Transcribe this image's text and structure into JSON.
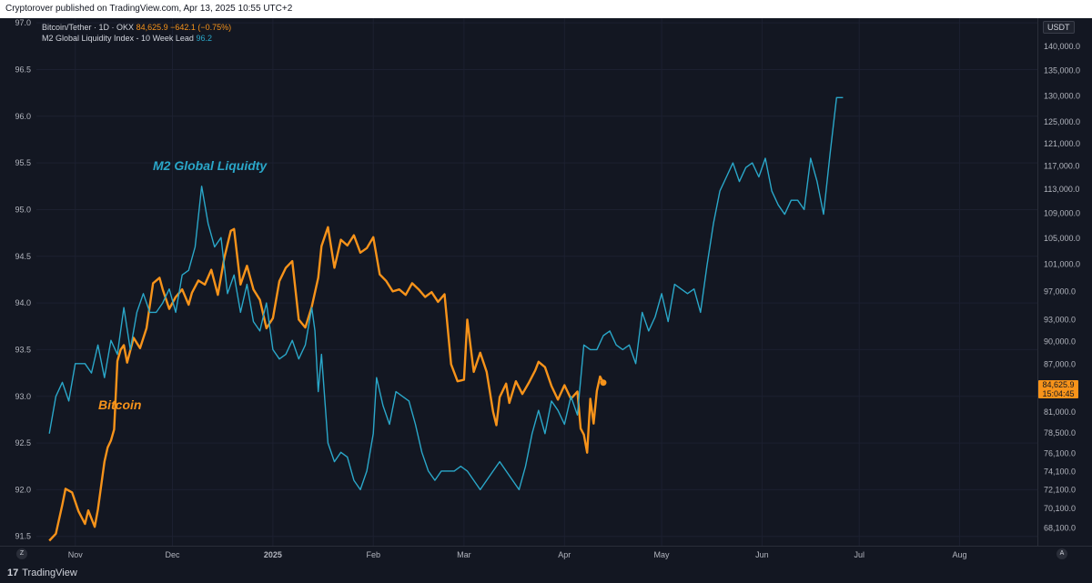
{
  "header": {
    "published_text": "Cryptorover published on TradingView.com, Apr 13, 2025 10:55 UTC+2"
  },
  "legend": {
    "btc_label": "Bitcoin/Tether · 1D · OKX",
    "btc_price": "84,625.9",
    "btc_change": "−642.1 (−0.75%)",
    "m2_label": "M2 Global Liquidity Index - 10 Week Lead",
    "m2_value": "96.2"
  },
  "right_axis_unit": "USDT",
  "price_tag": {
    "price": "84,625.9",
    "countdown": "15:04:45"
  },
  "annotations": {
    "m2": "M2 Global Liquidty",
    "btc": "Bitcoin"
  },
  "footer": {
    "logo": "TradingView",
    "logo_mark": "17"
  },
  "buttons": {
    "zoom_left": "Z",
    "auto_right": "A"
  },
  "colors": {
    "background": "#131722",
    "bitcoin": "#f7931a",
    "m2": "#2aa7c9",
    "text": "#d1d4dc"
  },
  "chart_data": {
    "type": "line",
    "x_ticks": [
      "Nov",
      "Dec",
      "2025",
      "Feb",
      "Mar",
      "Apr",
      "May",
      "Jun",
      "Jul",
      "Aug"
    ],
    "left_axis": {
      "ticks": [
        "97.0",
        "96.5",
        "96.0",
        "95.5",
        "95.0",
        "94.5",
        "94.0",
        "93.5",
        "93.0",
        "92.5",
        "92.0",
        "91.5"
      ],
      "range": [
        91.4,
        97.05
      ]
    },
    "right_axis": {
      "ticks": [
        "140,000.0",
        "135,000.0",
        "130,000.0",
        "125,000.0",
        "121,000.0",
        "117,000.0",
        "113,000.0",
        "109,000.0",
        "105,000.0",
        "101,000.0",
        "97,000.0",
        "93,000.0",
        "90,000.0",
        "87,000.0",
        "81,000.0",
        "78,500.0",
        "76,100.0",
        "74,100.0",
        "72,100.0",
        "70,100.0",
        "68,100.0"
      ],
      "scale": "log"
    },
    "series": [
      {
        "name": "Bitcoin/Tether",
        "axis": "right",
        "points": [
          [
            "2024-10-24",
            66800
          ],
          [
            "2024-10-26",
            67500
          ],
          [
            "2024-10-28",
            70500
          ],
          [
            "2024-10-29",
            72200
          ],
          [
            "2024-10-31",
            71800
          ],
          [
            "2024-11-02",
            69800
          ],
          [
            "2024-11-04",
            68500
          ],
          [
            "2024-11-05",
            69900
          ],
          [
            "2024-11-07",
            68200
          ],
          [
            "2024-11-08",
            70000
          ],
          [
            "2024-11-10",
            75200
          ],
          [
            "2024-11-11",
            76800
          ],
          [
            "2024-11-12",
            77600
          ],
          [
            "2024-11-13",
            78900
          ],
          [
            "2024-11-14",
            87400
          ],
          [
            "2024-11-15",
            88900
          ],
          [
            "2024-11-16",
            89500
          ],
          [
            "2024-11-17",
            87200
          ],
          [
            "2024-11-19",
            90500
          ],
          [
            "2024-11-21",
            89100
          ],
          [
            "2024-11-23",
            91800
          ],
          [
            "2024-11-25",
            98200
          ],
          [
            "2024-11-27",
            99000
          ],
          [
            "2024-11-28",
            97300
          ],
          [
            "2024-11-30",
            94500
          ],
          [
            "2024-12-02",
            96200
          ],
          [
            "2024-12-04",
            97300
          ],
          [
            "2024-12-06",
            95100
          ],
          [
            "2024-12-07",
            96800
          ],
          [
            "2024-12-09",
            98600
          ],
          [
            "2024-12-11",
            98000
          ],
          [
            "2024-12-13",
            100200
          ],
          [
            "2024-12-15",
            96500
          ],
          [
            "2024-12-17",
            102000
          ],
          [
            "2024-12-19",
            106200
          ],
          [
            "2024-12-20",
            106500
          ],
          [
            "2024-12-22",
            98000
          ],
          [
            "2024-12-24",
            100800
          ],
          [
            "2024-12-26",
            97300
          ],
          [
            "2024-12-28",
            95800
          ],
          [
            "2024-12-30",
            91800
          ],
          [
            "2025-01-01",
            93200
          ],
          [
            "2025-01-03",
            98500
          ],
          [
            "2025-01-05",
            100500
          ],
          [
            "2025-01-07",
            101500
          ],
          [
            "2025-01-09",
            93000
          ],
          [
            "2025-01-11",
            91900
          ],
          [
            "2025-01-13",
            94800
          ],
          [
            "2025-01-15",
            99000
          ],
          [
            "2025-01-16",
            103800
          ],
          [
            "2025-01-18",
            106800
          ],
          [
            "2025-01-20",
            100500
          ],
          [
            "2025-01-22",
            104800
          ],
          [
            "2025-01-24",
            103900
          ],
          [
            "2025-01-26",
            105500
          ],
          [
            "2025-01-28",
            102800
          ],
          [
            "2025-01-30",
            103500
          ],
          [
            "2025-02-01",
            105200
          ],
          [
            "2025-02-03",
            99500
          ],
          [
            "2025-02-05",
            98500
          ],
          [
            "2025-02-07",
            97000
          ],
          [
            "2025-02-09",
            97300
          ],
          [
            "2025-02-11",
            96500
          ],
          [
            "2025-02-13",
            98200
          ],
          [
            "2025-02-15",
            97300
          ],
          [
            "2025-02-17",
            96200
          ],
          [
            "2025-02-19",
            96900
          ],
          [
            "2025-02-21",
            95500
          ],
          [
            "2025-02-23",
            96600
          ],
          [
            "2025-02-25",
            87000
          ],
          [
            "2025-02-27",
            84800
          ],
          [
            "2025-03-01",
            85000
          ],
          [
            "2025-03-02",
            93000
          ],
          [
            "2025-03-04",
            86000
          ],
          [
            "2025-03-06",
            88500
          ],
          [
            "2025-03-08",
            86000
          ],
          [
            "2025-03-10",
            81000
          ],
          [
            "2025-03-11",
            79400
          ],
          [
            "2025-03-12",
            82800
          ],
          [
            "2025-03-14",
            84500
          ],
          [
            "2025-03-15",
            82100
          ],
          [
            "2025-03-17",
            84800
          ],
          [
            "2025-03-19",
            83200
          ],
          [
            "2025-03-21",
            84600
          ],
          [
            "2025-03-23",
            86200
          ],
          [
            "2025-03-24",
            87300
          ],
          [
            "2025-03-26",
            86600
          ],
          [
            "2025-03-28",
            84200
          ],
          [
            "2025-03-30",
            82500
          ],
          [
            "2025-04-01",
            84300
          ],
          [
            "2025-04-03",
            82600
          ],
          [
            "2025-04-05",
            83500
          ],
          [
            "2025-04-06",
            79000
          ],
          [
            "2025-04-07",
            78300
          ],
          [
            "2025-04-08",
            76200
          ],
          [
            "2025-04-09",
            82600
          ],
          [
            "2025-04-10",
            79600
          ],
          [
            "2025-04-11",
            83600
          ],
          [
            "2025-04-12",
            85400
          ],
          [
            "2025-04-13",
            84625.9
          ]
        ]
      },
      {
        "name": "M2 Global Liquidity Index - 10 Week Lead",
        "axis": "left",
        "points": [
          [
            "2024-10-24",
            92.6
          ],
          [
            "2024-10-26",
            93.0
          ],
          [
            "2024-10-28",
            93.15
          ],
          [
            "2024-10-30",
            92.95
          ],
          [
            "2024-11-01",
            93.35
          ],
          [
            "2024-11-04",
            93.35
          ],
          [
            "2024-11-06",
            93.25
          ],
          [
            "2024-11-08",
            93.55
          ],
          [
            "2024-11-10",
            93.2
          ],
          [
            "2024-11-12",
            93.6
          ],
          [
            "2024-11-14",
            93.45
          ],
          [
            "2024-11-16",
            93.95
          ],
          [
            "2024-11-18",
            93.5
          ],
          [
            "2024-11-20",
            93.9
          ],
          [
            "2024-11-22",
            94.1
          ],
          [
            "2024-11-24",
            93.9
          ],
          [
            "2024-11-26",
            93.9
          ],
          [
            "2024-11-28",
            94.0
          ],
          [
            "2024-11-30",
            94.15
          ],
          [
            "2024-12-02",
            93.9
          ],
          [
            "2024-12-04",
            94.3
          ],
          [
            "2024-12-06",
            94.35
          ],
          [
            "2024-12-08",
            94.6
          ],
          [
            "2024-12-10",
            95.25
          ],
          [
            "2024-12-12",
            94.85
          ],
          [
            "2024-12-14",
            94.6
          ],
          [
            "2024-12-16",
            94.7
          ],
          [
            "2024-12-18",
            94.1
          ],
          [
            "2024-12-20",
            94.3
          ],
          [
            "2024-12-22",
            93.9
          ],
          [
            "2024-12-24",
            94.2
          ],
          [
            "2024-12-26",
            93.8
          ],
          [
            "2024-12-28",
            93.7
          ],
          [
            "2024-12-30",
            94.0
          ],
          [
            "2025-01-01",
            93.5
          ],
          [
            "2025-01-03",
            93.4
          ],
          [
            "2025-01-05",
            93.45
          ],
          [
            "2025-01-07",
            93.6
          ],
          [
            "2025-01-09",
            93.4
          ],
          [
            "2025-01-11",
            93.55
          ],
          [
            "2025-01-13",
            93.95
          ],
          [
            "2025-01-14",
            93.7
          ],
          [
            "2025-01-15",
            93.05
          ],
          [
            "2025-01-16",
            93.45
          ],
          [
            "2025-01-18",
            92.5
          ],
          [
            "2025-01-20",
            92.3
          ],
          [
            "2025-01-22",
            92.4
          ],
          [
            "2025-01-24",
            92.35
          ],
          [
            "2025-01-26",
            92.1
          ],
          [
            "2025-01-28",
            92.0
          ],
          [
            "2025-01-30",
            92.2
          ],
          [
            "2025-02-01",
            92.6
          ],
          [
            "2025-02-02",
            93.2
          ],
          [
            "2025-02-04",
            92.9
          ],
          [
            "2025-02-06",
            92.7
          ],
          [
            "2025-02-08",
            93.05
          ],
          [
            "2025-02-10",
            93.0
          ],
          [
            "2025-02-12",
            92.95
          ],
          [
            "2025-02-14",
            92.7
          ],
          [
            "2025-02-16",
            92.4
          ],
          [
            "2025-02-18",
            92.2
          ],
          [
            "2025-02-20",
            92.1
          ],
          [
            "2025-02-22",
            92.2
          ],
          [
            "2025-02-24",
            92.2
          ],
          [
            "2025-02-26",
            92.2
          ],
          [
            "2025-02-28",
            92.25
          ],
          [
            "2025-03-02",
            92.2
          ],
          [
            "2025-03-04",
            92.1
          ],
          [
            "2025-03-06",
            92.0
          ],
          [
            "2025-03-08",
            92.1
          ],
          [
            "2025-03-10",
            92.2
          ],
          [
            "2025-03-12",
            92.3
          ],
          [
            "2025-03-14",
            92.2
          ],
          [
            "2025-03-16",
            92.1
          ],
          [
            "2025-03-18",
            92.0
          ],
          [
            "2025-03-20",
            92.25
          ],
          [
            "2025-03-22",
            92.6
          ],
          [
            "2025-03-24",
            92.85
          ],
          [
            "2025-03-26",
            92.6
          ],
          [
            "2025-03-28",
            92.95
          ],
          [
            "2025-03-30",
            92.85
          ],
          [
            "2025-04-01",
            92.7
          ],
          [
            "2025-04-03",
            93.0
          ],
          [
            "2025-04-05",
            92.8
          ],
          [
            "2025-04-07",
            93.55
          ],
          [
            "2025-04-09",
            93.5
          ],
          [
            "2025-04-11",
            93.5
          ],
          [
            "2025-04-13",
            93.65
          ],
          [
            "2025-04-15",
            93.7
          ],
          [
            "2025-04-17",
            93.55
          ],
          [
            "2025-04-19",
            93.5
          ],
          [
            "2025-04-21",
            93.55
          ],
          [
            "2025-04-23",
            93.35
          ],
          [
            "2025-04-25",
            93.9
          ],
          [
            "2025-04-27",
            93.7
          ],
          [
            "2025-04-29",
            93.85
          ],
          [
            "2025-05-01",
            94.1
          ],
          [
            "2025-05-03",
            93.8
          ],
          [
            "2025-05-05",
            94.2
          ],
          [
            "2025-05-07",
            94.15
          ],
          [
            "2025-05-09",
            94.1
          ],
          [
            "2025-05-11",
            94.15
          ],
          [
            "2025-05-13",
            93.9
          ],
          [
            "2025-05-15",
            94.4
          ],
          [
            "2025-05-17",
            94.85
          ],
          [
            "2025-05-19",
            95.2
          ],
          [
            "2025-05-21",
            95.35
          ],
          [
            "2025-05-23",
            95.5
          ],
          [
            "2025-05-25",
            95.3
          ],
          [
            "2025-05-27",
            95.45
          ],
          [
            "2025-05-29",
            95.5
          ],
          [
            "2025-05-31",
            95.35
          ],
          [
            "2025-06-02",
            95.55
          ],
          [
            "2025-06-04",
            95.2
          ],
          [
            "2025-06-06",
            95.05
          ],
          [
            "2025-06-08",
            94.95
          ],
          [
            "2025-06-10",
            95.1
          ],
          [
            "2025-06-12",
            95.1
          ],
          [
            "2025-06-14",
            95.0
          ],
          [
            "2025-06-16",
            95.55
          ],
          [
            "2025-06-18",
            95.3
          ],
          [
            "2025-06-20",
            94.95
          ],
          [
            "2025-06-22",
            95.6
          ],
          [
            "2025-06-24",
            96.2
          ],
          [
            "2025-06-26",
            96.2
          ]
        ]
      }
    ]
  }
}
